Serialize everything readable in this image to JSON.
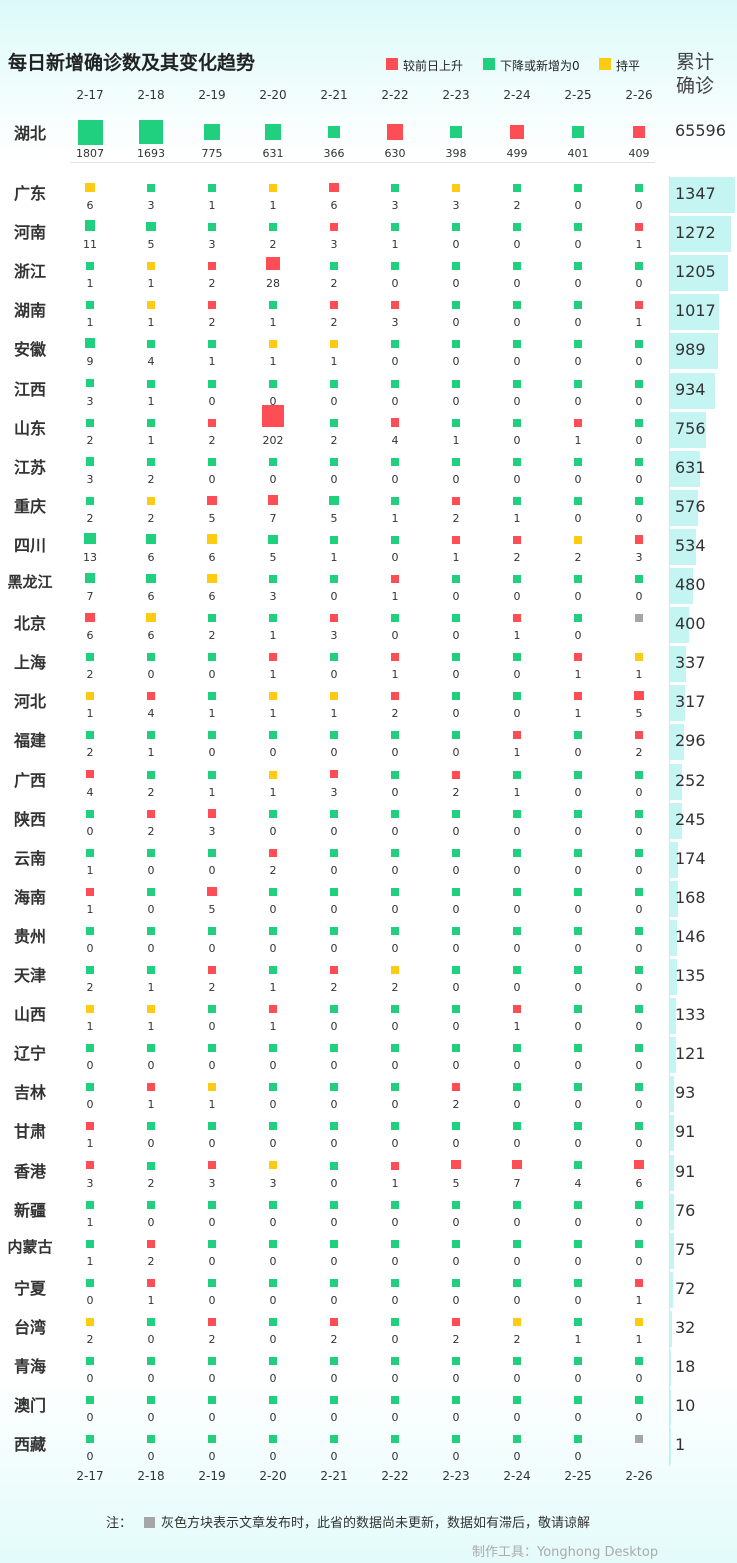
{
  "title": "每日新增确诊数及其变化趋势",
  "legend": [
    {
      "label": "较前日上升",
      "color": "#ff4d55"
    },
    {
      "label": "下降或新增为0",
      "color": "#21d07e"
    },
    {
      "label": "持平",
      "color": "#fdcb12"
    }
  ],
  "total_header": [
    "累计",
    "确诊"
  ],
  "note": {
    "prefix": "注：",
    "text": "灰色方块表示文章发布时，此省的数据尚未更新，数据如有滞后，敬请谅解"
  },
  "credit": "制作工具：Yonghong Desktop",
  "chart_data": {
    "type": "table",
    "dates": [
      "2-17",
      "2-18",
      "2-19",
      "2-20",
      "2-21",
      "2-22",
      "2-23",
      "2-24",
      "2-25",
      "2-26"
    ],
    "status_colors": {
      "up": "#ff4d55",
      "down": "#21d07e",
      "flat": "#fdcb12",
      "na": "#a6a6a6"
    },
    "hubei": {
      "name": "湖北",
      "values": [
        1807,
        1693,
        775,
        631,
        366,
        630,
        398,
        499,
        401,
        409
      ],
      "status": [
        "g",
        "g",
        "g",
        "g",
        "g",
        "r",
        "g",
        "r",
        "g",
        "r"
      ],
      "total": 65596
    },
    "provinces": [
      {
        "name": "广东",
        "total": 1347,
        "values": [
          6,
          3,
          1,
          1,
          6,
          3,
          3,
          2,
          0,
          0
        ],
        "status": [
          "y",
          "g",
          "g",
          "y",
          "r",
          "g",
          "y",
          "g",
          "g",
          "g"
        ]
      },
      {
        "name": "河南",
        "total": 1272,
        "values": [
          11,
          5,
          3,
          2,
          3,
          1,
          0,
          0,
          0,
          1
        ],
        "status": [
          "g",
          "g",
          "g",
          "g",
          "r",
          "g",
          "g",
          "g",
          "g",
          "r"
        ]
      },
      {
        "name": "浙江",
        "total": 1205,
        "values": [
          1,
          1,
          2,
          28,
          2,
          0,
          0,
          0,
          0,
          0
        ],
        "status": [
          "g",
          "y",
          "r",
          "r",
          "g",
          "g",
          "g",
          "g",
          "g",
          "g"
        ]
      },
      {
        "name": "湖南",
        "total": 1017,
        "values": [
          1,
          1,
          2,
          1,
          2,
          3,
          0,
          0,
          0,
          1
        ],
        "status": [
          "g",
          "y",
          "r",
          "g",
          "r",
          "r",
          "g",
          "g",
          "g",
          "r"
        ]
      },
      {
        "name": "安徽",
        "total": 989,
        "values": [
          9,
          4,
          1,
          1,
          1,
          0,
          0,
          0,
          0,
          0
        ],
        "status": [
          "g",
          "g",
          "g",
          "y",
          "y",
          "g",
          "g",
          "g",
          "g",
          "g"
        ]
      },
      {
        "name": "江西",
        "total": 934,
        "values": [
          3,
          1,
          0,
          0,
          0,
          0,
          0,
          0,
          0,
          0
        ],
        "status": [
          "g",
          "g",
          "g",
          "g",
          "g",
          "g",
          "g",
          "g",
          "g",
          "g"
        ]
      },
      {
        "name": "山东",
        "total": 756,
        "values": [
          2,
          1,
          2,
          202,
          2,
          4,
          1,
          0,
          1,
          0
        ],
        "status": [
          "g",
          "g",
          "r",
          "r",
          "g",
          "r",
          "g",
          "g",
          "r",
          "g"
        ]
      },
      {
        "name": "江苏",
        "total": 631,
        "values": [
          3,
          2,
          0,
          0,
          0,
          0,
          0,
          0,
          0,
          0
        ],
        "status": [
          "g",
          "g",
          "g",
          "g",
          "g",
          "g",
          "g",
          "g",
          "g",
          "g"
        ]
      },
      {
        "name": "重庆",
        "total": 576,
        "values": [
          2,
          2,
          5,
          7,
          5,
          1,
          2,
          1,
          0,
          0
        ],
        "status": [
          "g",
          "y",
          "r",
          "r",
          "g",
          "g",
          "r",
          "g",
          "g",
          "g"
        ]
      },
      {
        "name": "四川",
        "total": 534,
        "values": [
          13,
          6,
          6,
          5,
          1,
          0,
          1,
          2,
          2,
          3
        ],
        "status": [
          "g",
          "g",
          "y",
          "g",
          "g",
          "g",
          "r",
          "r",
          "y",
          "r"
        ]
      },
      {
        "name": "黑龙江",
        "total": 480,
        "values": [
          7,
          6,
          6,
          3,
          0,
          1,
          0,
          0,
          0,
          0
        ],
        "status": [
          "g",
          "g",
          "y",
          "g",
          "g",
          "r",
          "g",
          "g",
          "g",
          "g"
        ]
      },
      {
        "name": "北京",
        "total": 400,
        "values": [
          6,
          6,
          2,
          1,
          3,
          0,
          0,
          1,
          0,
          ""
        ],
        "status": [
          "r",
          "y",
          "g",
          "g",
          "r",
          "g",
          "g",
          "r",
          "g",
          "n"
        ]
      },
      {
        "name": "上海",
        "total": 337,
        "values": [
          2,
          0,
          0,
          1,
          0,
          1,
          0,
          0,
          1,
          1
        ],
        "status": [
          "g",
          "g",
          "g",
          "r",
          "g",
          "r",
          "g",
          "g",
          "r",
          "y"
        ]
      },
      {
        "name": "河北",
        "total": 317,
        "values": [
          1,
          4,
          1,
          1,
          1,
          2,
          0,
          0,
          1,
          5
        ],
        "status": [
          "y",
          "r",
          "g",
          "y",
          "y",
          "r",
          "g",
          "g",
          "r",
          "r"
        ]
      },
      {
        "name": "福建",
        "total": 296,
        "values": [
          2,
          1,
          0,
          0,
          0,
          0,
          0,
          1,
          0,
          2
        ],
        "status": [
          "g",
          "g",
          "g",
          "g",
          "g",
          "g",
          "g",
          "r",
          "g",
          "r"
        ]
      },
      {
        "name": "广西",
        "total": 252,
        "values": [
          4,
          2,
          1,
          1,
          3,
          0,
          2,
          1,
          0,
          0
        ],
        "status": [
          "r",
          "g",
          "g",
          "y",
          "r",
          "g",
          "r",
          "g",
          "g",
          "g"
        ]
      },
      {
        "name": "陕西",
        "total": 245,
        "values": [
          0,
          2,
          3,
          0,
          0,
          0,
          0,
          0,
          0,
          0
        ],
        "status": [
          "g",
          "r",
          "r",
          "g",
          "g",
          "g",
          "g",
          "g",
          "g",
          "g"
        ]
      },
      {
        "name": "云南",
        "total": 174,
        "values": [
          1,
          0,
          0,
          2,
          0,
          0,
          0,
          0,
          0,
          0
        ],
        "status": [
          "g",
          "g",
          "g",
          "r",
          "g",
          "g",
          "g",
          "g",
          "g",
          "g"
        ]
      },
      {
        "name": "海南",
        "total": 168,
        "values": [
          1,
          0,
          5,
          0,
          0,
          0,
          0,
          0,
          0,
          0
        ],
        "status": [
          "r",
          "g",
          "r",
          "g",
          "g",
          "g",
          "g",
          "g",
          "g",
          "g"
        ]
      },
      {
        "name": "贵州",
        "total": 146,
        "values": [
          0,
          0,
          0,
          0,
          0,
          0,
          0,
          0,
          0,
          0
        ],
        "status": [
          "g",
          "g",
          "g",
          "g",
          "g",
          "g",
          "g",
          "g",
          "g",
          "g"
        ]
      },
      {
        "name": "天津",
        "total": 135,
        "values": [
          2,
          1,
          2,
          1,
          2,
          2,
          0,
          0,
          0,
          0
        ],
        "status": [
          "g",
          "g",
          "r",
          "g",
          "r",
          "y",
          "g",
          "g",
          "g",
          "g"
        ]
      },
      {
        "name": "山西",
        "total": 133,
        "values": [
          1,
          1,
          0,
          1,
          0,
          0,
          0,
          1,
          0,
          0
        ],
        "status": [
          "y",
          "y",
          "g",
          "r",
          "g",
          "g",
          "g",
          "r",
          "g",
          "g"
        ]
      },
      {
        "name": "辽宁",
        "total": 121,
        "values": [
          0,
          0,
          0,
          0,
          0,
          0,
          0,
          0,
          0,
          0
        ],
        "status": [
          "g",
          "g",
          "g",
          "g",
          "g",
          "g",
          "g",
          "g",
          "g",
          "g"
        ]
      },
      {
        "name": "吉林",
        "total": 93,
        "values": [
          0,
          1,
          1,
          0,
          0,
          0,
          2,
          0,
          0,
          0
        ],
        "status": [
          "g",
          "r",
          "y",
          "g",
          "g",
          "g",
          "r",
          "g",
          "g",
          "g"
        ]
      },
      {
        "name": "甘肃",
        "total": 91,
        "values": [
          1,
          0,
          0,
          0,
          0,
          0,
          0,
          0,
          0,
          0
        ],
        "status": [
          "r",
          "g",
          "g",
          "g",
          "g",
          "g",
          "g",
          "g",
          "g",
          "g"
        ]
      },
      {
        "name": "香港",
        "total": 91,
        "values": [
          3,
          2,
          3,
          3,
          0,
          1,
          5,
          7,
          4,
          6
        ],
        "status": [
          "r",
          "g",
          "r",
          "y",
          "g",
          "r",
          "r",
          "r",
          "g",
          "r"
        ]
      },
      {
        "name": "新疆",
        "total": 76,
        "values": [
          1,
          0,
          0,
          0,
          0,
          0,
          0,
          0,
          0,
          0
        ],
        "status": [
          "g",
          "g",
          "g",
          "g",
          "g",
          "g",
          "g",
          "g",
          "g",
          "g"
        ]
      },
      {
        "name": "内蒙古",
        "total": 75,
        "values": [
          1,
          2,
          0,
          0,
          0,
          0,
          0,
          0,
          0,
          0
        ],
        "status": [
          "g",
          "r",
          "g",
          "g",
          "g",
          "g",
          "g",
          "g",
          "g",
          "g"
        ]
      },
      {
        "name": "宁夏",
        "total": 72,
        "values": [
          0,
          1,
          0,
          0,
          0,
          0,
          0,
          0,
          0,
          1
        ],
        "status": [
          "g",
          "r",
          "g",
          "g",
          "g",
          "g",
          "g",
          "g",
          "g",
          "r"
        ]
      },
      {
        "name": "台湾",
        "total": 32,
        "values": [
          2,
          0,
          2,
          0,
          2,
          0,
          2,
          2,
          1,
          1
        ],
        "status": [
          "y",
          "g",
          "r",
          "g",
          "r",
          "g",
          "r",
          "y",
          "g",
          "y"
        ]
      },
      {
        "name": "青海",
        "total": 18,
        "values": [
          0,
          0,
          0,
          0,
          0,
          0,
          0,
          0,
          0,
          0
        ],
        "status": [
          "g",
          "g",
          "g",
          "g",
          "g",
          "g",
          "g",
          "g",
          "g",
          "g"
        ]
      },
      {
        "name": "澳门",
        "total": 10,
        "values": [
          0,
          0,
          0,
          0,
          0,
          0,
          0,
          0,
          0,
          0
        ],
        "status": [
          "g",
          "g",
          "g",
          "g",
          "g",
          "g",
          "g",
          "g",
          "g",
          "g"
        ]
      },
      {
        "name": "西藏",
        "total": 1,
        "values": [
          0,
          0,
          0,
          0,
          0,
          0,
          0,
          0,
          0,
          ""
        ],
        "status": [
          "g",
          "g",
          "g",
          "g",
          "g",
          "g",
          "g",
          "g",
          "g",
          "n"
        ]
      }
    ]
  }
}
